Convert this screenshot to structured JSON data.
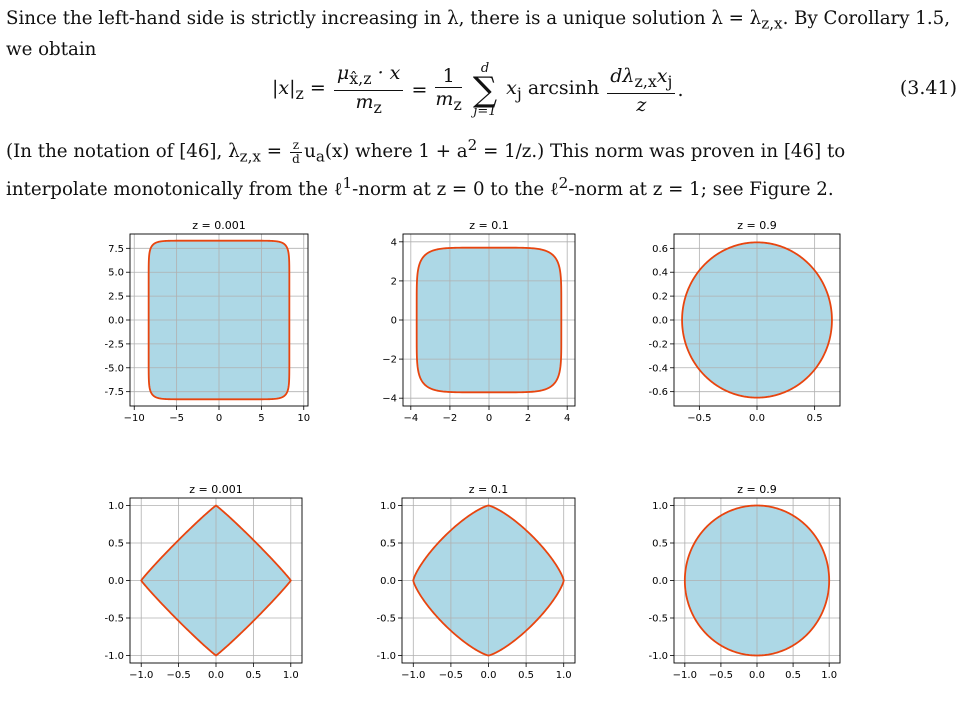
{
  "paragraph1": {
    "line1": "Since the left-hand side is strictly increasing in λ, there is a unique solution λ = λ",
    "line1_sub": "z,x",
    "line1_end": ". By Corollary 1.5,",
    "line2": "we obtain"
  },
  "equation": {
    "lhs": "|x|",
    "lhs_sub": "z",
    "frac1_num": "μ",
    "frac1_num_sub": "x̂,z",
    "frac1_num_rest": " · x",
    "frac1_den": "m",
    "frac1_den_sub": "z",
    "frac2_num": "1",
    "frac2_den": "m",
    "frac2_den_sub": "z",
    "sum_top": "d",
    "sum_bottom": "j=1",
    "term": "x",
    "term_sub": "j",
    "func": "arcsinh",
    "frac3_num": "dλ",
    "frac3_num_sub": "z,x",
    "frac3_num_rest": "x",
    "frac3_num_rest_sub": "j",
    "frac3_den": "z",
    "number": "(3.41)"
  },
  "paragraph2": {
    "line1a": "(In the notation of [46], λ",
    "line1_sub": "z,x",
    "line1b": " = ",
    "line1_frac_num": "z",
    "line1_frac_den": "d",
    "line1c": "u",
    "line1c_sub": "a",
    "line1d": "(x) where 1 + a",
    "line1d_sup": "2",
    "line1e": " = 1/z.)  This norm was proven in [46] to",
    "line2a": "interpolate monotonically from the ℓ",
    "line2a_sup": "1",
    "line2b": "-norm at z = 0 to the ℓ",
    "line2b_sup": "2",
    "line2c": "-norm at z = 1; see Figure 2."
  },
  "colors": {
    "fill": "#add8e6",
    "stroke": "#e8450f",
    "grid": "#b0b0b0",
    "axis": "#000000"
  },
  "chart_data": [
    {
      "type": "line",
      "title": "z = 0.001",
      "shape": "norm-unit-ball",
      "z": 0.001,
      "series": "boundary-scaled",
      "xlim": [
        -10.5,
        10.5
      ],
      "ylim": [
        -9,
        9
      ],
      "xticks": [
        -10,
        -5,
        0,
        5,
        10
      ],
      "xticklabels": [
        "−10",
        "−5",
        "0",
        "5",
        "10"
      ],
      "yticks": [
        -7.5,
        -5,
        -2.5,
        0,
        2.5,
        5,
        7.5
      ],
      "yticklabels": [
        "-7.5",
        "-5.0",
        "-2.5",
        "0.0",
        "2.5",
        "5.0",
        "7.5"
      ],
      "extent": 8.3,
      "exponent": 12,
      "grid": true
    },
    {
      "type": "line",
      "title": "z = 0.1",
      "shape": "norm-unit-ball",
      "z": 0.1,
      "xlim": [
        -4.4,
        4.4
      ],
      "ylim": [
        -4.4,
        4.4
      ],
      "xticks": [
        -4,
        -2,
        0,
        2,
        4
      ],
      "xticklabels": [
        "−4",
        "−2",
        "0",
        "2",
        "4"
      ],
      "yticks": [
        -4,
        -2,
        0,
        2,
        4
      ],
      "yticklabels": [
        "−4",
        "−2",
        "0",
        "2",
        "4"
      ],
      "extent": 3.7,
      "exponent": 6,
      "grid": true
    },
    {
      "type": "line",
      "title": "z = 0.9",
      "shape": "norm-unit-ball",
      "z": 0.9,
      "xlim": [
        -0.72,
        0.72
      ],
      "ylim": [
        -0.72,
        0.72
      ],
      "xticks": [
        -0.5,
        0,
        0.5
      ],
      "xticklabels": [
        "−0.5",
        "0.0",
        "0.5"
      ],
      "yticks": [
        -0.6,
        -0.4,
        -0.2,
        0,
        0.2,
        0.4,
        0.6
      ],
      "yticklabels": [
        "-0.6",
        "-0.4",
        "-0.2",
        "0.0",
        "0.2",
        "0.4",
        "0.6"
      ],
      "extent": 0.65,
      "exponent": 2,
      "grid": true
    },
    {
      "type": "line",
      "title": "z = 0.001",
      "shape": "norm-unit-ball",
      "z": 0.001,
      "xlim": [
        -1.15,
        1.15
      ],
      "ylim": [
        -1.1,
        1.1
      ],
      "xticks": [
        -1,
        -0.5,
        0,
        0.5,
        1
      ],
      "xticklabels": [
        "−1.0",
        "−0.5",
        "0.0",
        "0.5",
        "1.0"
      ],
      "yticks": [
        -1,
        -0.5,
        0,
        0.5,
        1
      ],
      "yticklabels": [
        "-1.0",
        "-0.5",
        "0.0",
        "0.5",
        "1.0"
      ],
      "extent": 1,
      "exponent": 1.06,
      "grid": true
    },
    {
      "type": "line",
      "title": "z = 0.1",
      "shape": "norm-unit-ball",
      "z": 0.1,
      "xlim": [
        -1.15,
        1.15
      ],
      "ylim": [
        -1.1,
        1.1
      ],
      "xticks": [
        -1,
        -0.5,
        0,
        0.5,
        1
      ],
      "xticklabels": [
        "−1.0",
        "−0.5",
        "0.0",
        "0.5",
        "1.0"
      ],
      "yticks": [
        -1,
        -0.5,
        0,
        0.5,
        1
      ],
      "yticklabels": [
        "-1.0",
        "-0.5",
        "0.0",
        "0.5",
        "1.0"
      ],
      "extent": 1,
      "exponent": 1.3,
      "grid": true
    },
    {
      "type": "line",
      "title": "z = 0.9",
      "shape": "norm-unit-ball",
      "z": 0.9,
      "xlim": [
        -1.15,
        1.15
      ],
      "ylim": [
        -1.1,
        1.1
      ],
      "xticks": [
        -1,
        -0.5,
        0,
        0.5,
        1
      ],
      "xticklabels": [
        "−1.0",
        "−0.5",
        "0.0",
        "0.5",
        "1.0"
      ],
      "yticks": [
        -1,
        -0.5,
        0,
        0.5,
        1
      ],
      "yticklabels": [
        "-1.0",
        "-0.5",
        "0.0",
        "0.5",
        "1.0"
      ],
      "extent": 1,
      "exponent": 2,
      "grid": true
    }
  ]
}
